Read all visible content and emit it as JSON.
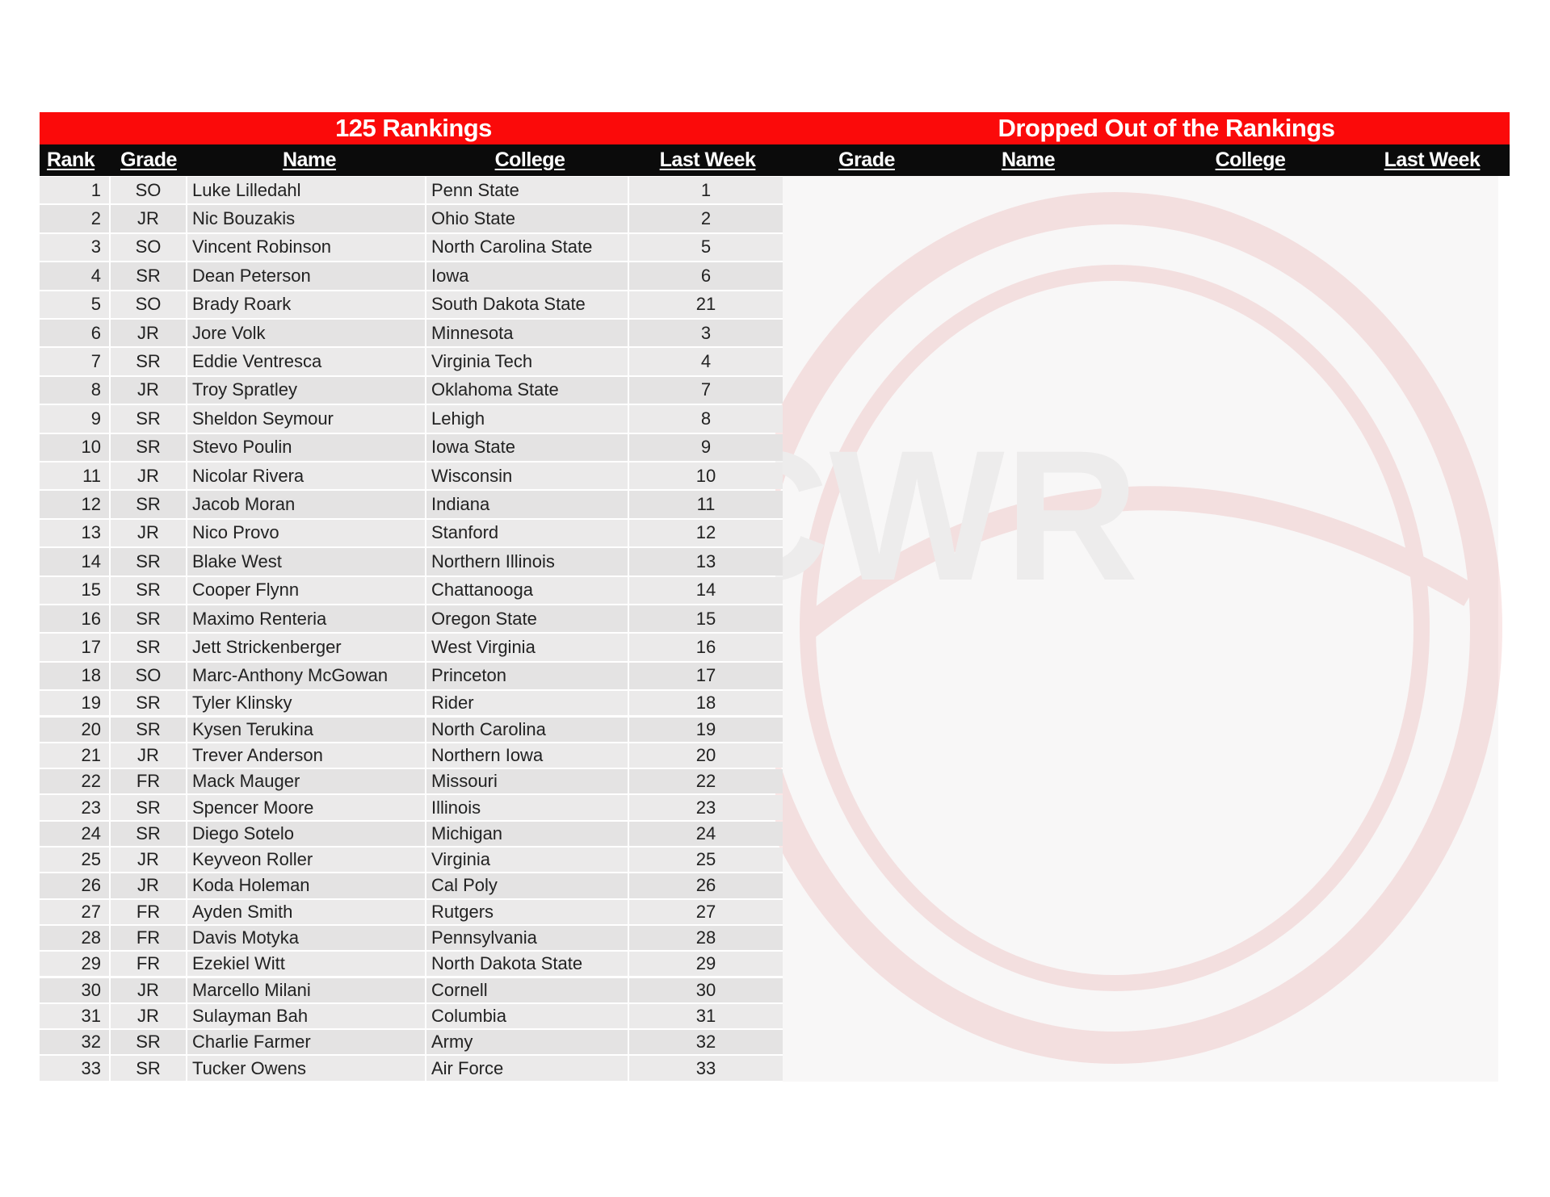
{
  "left_title": "125 Rankings",
  "right_title": "Dropped Out of the Rankings",
  "left_headers": {
    "rank": "Rank",
    "grade": "Grade",
    "name": "Name",
    "college": "College",
    "last_week": "Last Week"
  },
  "right_headers": {
    "grade": "Grade",
    "name": "Name",
    "college": "College",
    "last_week": "Last Week"
  },
  "colors": {
    "title_bar": "#fb0a0a",
    "header_bar": "#0b0b0b",
    "row": "#ebeaea"
  },
  "watermark_text": "TCWR",
  "rows": [
    {
      "rank": "1",
      "grade": "SO",
      "name": "Luke Lilledahl",
      "college": "Penn State",
      "last_week": "1"
    },
    {
      "rank": "2",
      "grade": "JR",
      "name": "Nic Bouzakis",
      "college": "Ohio State",
      "last_week": "2"
    },
    {
      "rank": "3",
      "grade": "SO",
      "name": "Vincent Robinson",
      "college": "North Carolina State",
      "last_week": "5"
    },
    {
      "rank": "4",
      "grade": "SR",
      "name": "Dean Peterson",
      "college": "Iowa",
      "last_week": "6"
    },
    {
      "rank": "5",
      "grade": "SO",
      "name": "Brady Roark",
      "college": "South Dakota State",
      "last_week": "21"
    },
    {
      "rank": "6",
      "grade": "JR",
      "name": "Jore Volk",
      "college": "Minnesota",
      "last_week": "3"
    },
    {
      "rank": "7",
      "grade": "SR",
      "name": "Eddie Ventresca",
      "college": "Virginia Tech",
      "last_week": "4"
    },
    {
      "rank": "8",
      "grade": "JR",
      "name": "Troy Spratley",
      "college": "Oklahoma State",
      "last_week": "7"
    },
    {
      "rank": "9",
      "grade": "SR",
      "name": "Sheldon Seymour",
      "college": "Lehigh",
      "last_week": "8"
    },
    {
      "rank": "10",
      "grade": "SR",
      "name": "Stevo Poulin",
      "college": "Iowa State",
      "last_week": "9"
    },
    {
      "rank": "11",
      "grade": "JR",
      "name": "Nicolar Rivera",
      "college": "Wisconsin",
      "last_week": "10"
    },
    {
      "rank": "12",
      "grade": "SR",
      "name": "Jacob Moran",
      "college": "Indiana",
      "last_week": "11"
    },
    {
      "rank": "13",
      "grade": "JR",
      "name": "Nico Provo",
      "college": "Stanford",
      "last_week": "12"
    },
    {
      "rank": "14",
      "grade": "SR",
      "name": "Blake West",
      "college": "Northern Illinois",
      "last_week": "13"
    },
    {
      "rank": "15",
      "grade": "SR",
      "name": "Cooper Flynn",
      "college": "Chattanooga",
      "last_week": "14"
    },
    {
      "rank": "16",
      "grade": "SR",
      "name": "Maximo Renteria",
      "college": "Oregon State",
      "last_week": "15"
    },
    {
      "rank": "17",
      "grade": "SR",
      "name": "Jett Strickenberger",
      "college": "West Virginia",
      "last_week": "16"
    },
    {
      "rank": "18",
      "grade": "SO",
      "name": "Marc-Anthony McGowan",
      "college": "Princeton",
      "last_week": "17"
    },
    {
      "rank": "19",
      "grade": "SR",
      "name": "Tyler Klinsky",
      "college": "Rider",
      "last_week": "18"
    },
    {
      "rank": "20",
      "grade": "SR",
      "name": "Kysen Terukina",
      "college": "North Carolina",
      "last_week": "19"
    },
    {
      "rank": "21",
      "grade": "JR",
      "name": "Trever Anderson",
      "college": "Northern Iowa",
      "last_week": "20"
    },
    {
      "rank": "22",
      "grade": "FR",
      "name": "Mack Mauger",
      "college": "Missouri",
      "last_week": "22"
    },
    {
      "rank": "23",
      "grade": "SR",
      "name": "Spencer Moore",
      "college": "Illinois",
      "last_week": "23"
    },
    {
      "rank": "24",
      "grade": "SR",
      "name": "Diego Sotelo",
      "college": "Michigan",
      "last_week": "24"
    },
    {
      "rank": "25",
      "grade": "JR",
      "name": "Keyveon Roller",
      "college": "Virginia",
      "last_week": "25"
    },
    {
      "rank": "26",
      "grade": "JR",
      "name": "Koda Holeman",
      "college": "Cal Poly",
      "last_week": "26"
    },
    {
      "rank": "27",
      "grade": "FR",
      "name": "Ayden Smith",
      "college": "Rutgers",
      "last_week": "27"
    },
    {
      "rank": "28",
      "grade": "FR",
      "name": "Davis Motyka",
      "college": "Pennsylvania",
      "last_week": "28"
    },
    {
      "rank": "29",
      "grade": "FR",
      "name": "Ezekiel Witt",
      "college": "North Dakota State",
      "last_week": "29"
    },
    {
      "rank": "30",
      "grade": "JR",
      "name": "Marcello Milani",
      "college": "Cornell",
      "last_week": "30"
    },
    {
      "rank": "31",
      "grade": "JR",
      "name": "Sulayman Bah",
      "college": "Columbia",
      "last_week": "31"
    },
    {
      "rank": "32",
      "grade": "SR",
      "name": "Charlie Farmer",
      "college": "Army",
      "last_week": "32"
    },
    {
      "rank": "33",
      "grade": "SR",
      "name": "Tucker Owens",
      "college": "Air Force",
      "last_week": "33"
    }
  ]
}
